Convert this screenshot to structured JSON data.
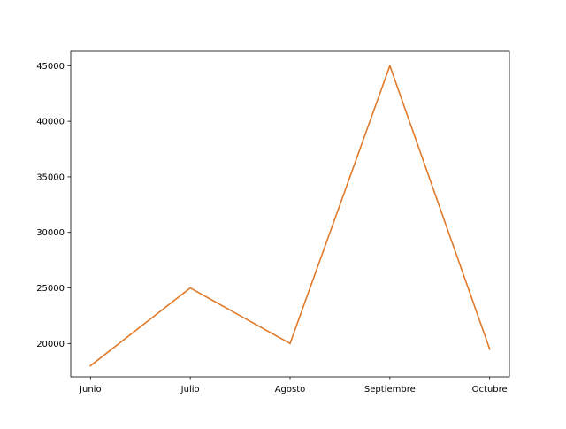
{
  "chart_data": {
    "type": "line",
    "categories": [
      "Junio",
      "Julio",
      "Agosto",
      "Septiembre",
      "Octubre"
    ],
    "series": [
      {
        "values": [
          18000,
          25000,
          20000,
          45000,
          19500
        ],
        "color": "#e07a2a"
      }
    ],
    "yticks": [
      20000,
      25000,
      30000,
      35000,
      40000,
      45000
    ],
    "ylim": [
      17000,
      46300
    ],
    "title": "",
    "xlabel": "",
    "ylabel": "",
    "grid": false,
    "legend": false
  }
}
